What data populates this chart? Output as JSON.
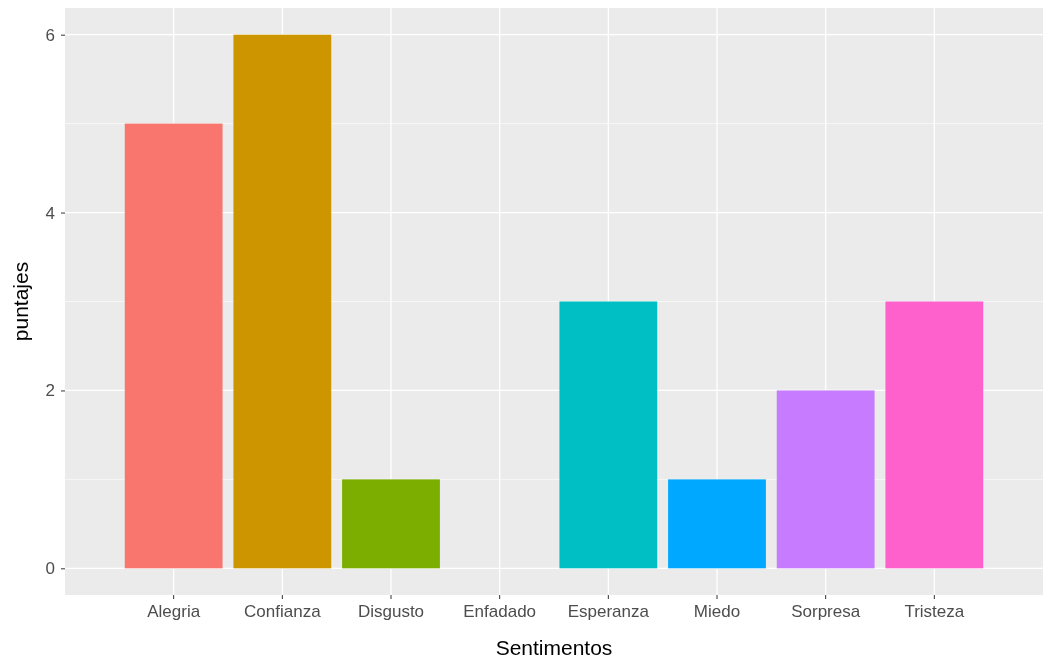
{
  "chart_data": {
    "type": "bar",
    "xlabel": "Sentimentos",
    "ylabel": "puntajes",
    "categories": [
      "Alegria",
      "Confianza",
      "Disgusto",
      "Enfadado",
      "Esperanza",
      "Miedo",
      "Sorpresa",
      "Tristeza"
    ],
    "values": [
      5,
      6,
      1,
      0,
      3,
      1,
      2,
      3
    ],
    "colors": [
      "#f8766d",
      "#cd9600",
      "#7cae00",
      "#00be67",
      "#00bfc4",
      "#00a9ff",
      "#c77cff",
      "#ff61cc"
    ],
    "ylim": [
      -0.3,
      6.3
    ],
    "yticks": [
      0,
      2,
      4,
      6
    ],
    "grid": true
  }
}
